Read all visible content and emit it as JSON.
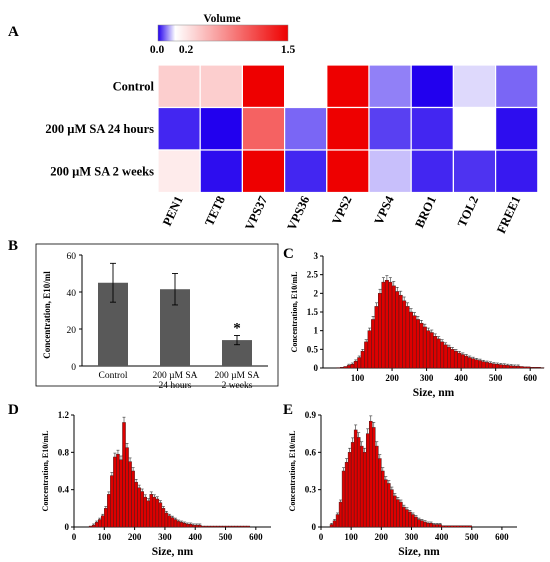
{
  "colors": {
    "low": "#2200ee",
    "mid": "#ffffff",
    "high": "#ee0000",
    "bar_gray": "#595959",
    "hist_fill": "#dd0000",
    "hist_edge": "#4a1a1a"
  },
  "panels": {
    "A": "A",
    "B": "B",
    "C": "C",
    "D": "D",
    "E": "E"
  },
  "chart_data": [
    {
      "type": "heatmap",
      "panel": "A",
      "colorbar": {
        "title": "Volume",
        "ticks": [
          "0.0",
          "0.2",
          "1.5"
        ],
        "range": [
          0,
          1.5
        ]
      },
      "rows": [
        "Control",
        "200 µM SA 24 hours",
        "200 µM SA 2 weeks"
      ],
      "columns": [
        "PEN1",
        "TET8",
        "VPS37",
        "VPS36",
        "VPS2",
        "VPS4",
        "BRO1",
        "TOL2",
        "FREE1"
      ],
      "values": [
        [
          0.45,
          0.45,
          1.5,
          0.2,
          1.5,
          0.1,
          0.0,
          0.17,
          0.08
        ],
        [
          0.03,
          0.0,
          1.0,
          0.08,
          1.5,
          0.05,
          0.03,
          0.2,
          0.01
        ],
        [
          0.3,
          0.01,
          1.5,
          0.03,
          1.5,
          0.15,
          0.03,
          0.04,
          0.02
        ]
      ]
    },
    {
      "type": "bar",
      "panel": "B",
      "categories": [
        "Control",
        "200 µM SA\n24 hours",
        "200 µM SA\n2 weeks"
      ],
      "values": [
        45,
        41.5,
        14
      ],
      "errors": [
        10.5,
        8.5,
        2.5
      ],
      "annotation": "*",
      "ylabel": "Concentration, E10/ml",
      "ylim": [
        0,
        60
      ],
      "yticks": [
        0,
        20,
        40,
        60
      ]
    },
    {
      "type": "bar",
      "panel": "C",
      "xlabel": "Size, nm",
      "ylabel": "Concentration, E10/mL",
      "xlim": [
        0,
        640
      ],
      "ylim": [
        0,
        3
      ],
      "xticks": [
        100,
        200,
        300,
        400,
        500,
        600
      ],
      "yticks": [
        0,
        0.5,
        1,
        1.5,
        2,
        2.5,
        3
      ],
      "x": [
        5,
        15,
        25,
        35,
        45,
        55,
        65,
        75,
        85,
        95,
        105,
        115,
        125,
        135,
        145,
        155,
        165,
        175,
        185,
        195,
        205,
        215,
        225,
        235,
        245,
        255,
        265,
        275,
        285,
        295,
        305,
        315,
        325,
        335,
        345,
        355,
        365,
        375,
        385,
        395,
        405,
        415,
        425,
        435,
        445,
        455,
        465,
        475,
        485,
        495,
        505,
        515,
        525,
        535,
        545,
        555,
        565,
        575,
        585,
        595,
        605,
        615,
        625,
        635
      ],
      "y": [
        0,
        0,
        0,
        0,
        0.01,
        0.02,
        0.04,
        0.07,
        0.1,
        0.18,
        0.28,
        0.45,
        0.7,
        1.0,
        1.3,
        1.65,
        2.0,
        2.3,
        2.35,
        2.3,
        2.2,
        2.05,
        1.95,
        1.8,
        1.65,
        1.5,
        1.4,
        1.3,
        1.2,
        1.1,
        1.0,
        0.95,
        0.85,
        0.78,
        0.7,
        0.62,
        0.56,
        0.5,
        0.45,
        0.4,
        0.36,
        0.32,
        0.28,
        0.25,
        0.22,
        0.2,
        0.17,
        0.15,
        0.13,
        0.11,
        0.1,
        0.09,
        0.08,
        0.07,
        0.06,
        0.05,
        0.05,
        0.04,
        0.03,
        0.03,
        0.02,
        0.02,
        0.02,
        0.01
      ]
    },
    {
      "type": "bar",
      "panel": "D",
      "xlabel": "Size, nm",
      "ylabel": "Concentration, E10/mL",
      "xlim": [
        0,
        650
      ],
      "ylim": [
        0,
        1.2
      ],
      "xticks": [
        0,
        100,
        200,
        300,
        400,
        500,
        600
      ],
      "yticks": [
        0,
        0.4,
        0.8,
        1.2
      ],
      "x": [
        45,
        55,
        65,
        75,
        85,
        95,
        105,
        115,
        125,
        135,
        145,
        155,
        165,
        175,
        185,
        195,
        205,
        215,
        225,
        235,
        245,
        255,
        265,
        275,
        285,
        295,
        305,
        315,
        325,
        335,
        345,
        355,
        365,
        375,
        385,
        395,
        405,
        415,
        425,
        435,
        445,
        455,
        465,
        475,
        485,
        495,
        505,
        515,
        525,
        535,
        545,
        555,
        565,
        575
      ],
      "y": [
        0,
        0.01,
        0.02,
        0.05,
        0.08,
        0.12,
        0.2,
        0.35,
        0.55,
        0.75,
        0.78,
        0.72,
        1.12,
        0.85,
        0.7,
        0.6,
        0.48,
        0.42,
        0.38,
        0.32,
        0.28,
        0.35,
        0.32,
        0.3,
        0.26,
        0.2,
        0.15,
        0.12,
        0.1,
        0.08,
        0.06,
        0.05,
        0.04,
        0.03,
        0.03,
        0.02,
        0.02,
        0.02,
        0.01,
        0.01,
        0.01,
        0.01,
        0.01,
        0.01,
        0.01,
        0.01,
        0.01,
        0.01,
        0.01,
        0.01,
        0.01,
        0.01,
        0.01,
        0.01
      ]
    },
    {
      "type": "bar",
      "panel": "E",
      "xlabel": "Size, nm",
      "ylabel": "Concentration, E10/mL",
      "xlim": [
        0,
        650
      ],
      "ylim": [
        0,
        0.9
      ],
      "xticks": [
        0,
        100,
        200,
        300,
        400,
        500,
        600
      ],
      "yticks": [
        0,
        0.3,
        0.6,
        0.9
      ],
      "x": [
        25,
        35,
        45,
        55,
        65,
        75,
        85,
        95,
        105,
        115,
        125,
        135,
        145,
        155,
        165,
        175,
        185,
        195,
        205,
        215,
        225,
        235,
        245,
        255,
        265,
        275,
        285,
        295,
        305,
        315,
        325,
        335,
        345,
        355,
        365,
        375,
        385,
        395,
        405,
        415,
        425,
        435,
        445,
        455,
        465,
        475,
        485,
        495
      ],
      "y": [
        0,
        0.02,
        0.05,
        0.1,
        0.2,
        0.45,
        0.52,
        0.6,
        0.68,
        0.78,
        0.72,
        0.65,
        0.6,
        0.75,
        0.85,
        0.8,
        0.65,
        0.55,
        0.45,
        0.38,
        0.35,
        0.3,
        0.25,
        0.22,
        0.2,
        0.16,
        0.14,
        0.12,
        0.1,
        0.08,
        0.06,
        0.05,
        0.04,
        0.03,
        0.03,
        0.02,
        0.02,
        0.02,
        0.01,
        0.01,
        0.01,
        0.01,
        0.01,
        0.01,
        0.01,
        0.01,
        0.01,
        0.01
      ]
    }
  ]
}
